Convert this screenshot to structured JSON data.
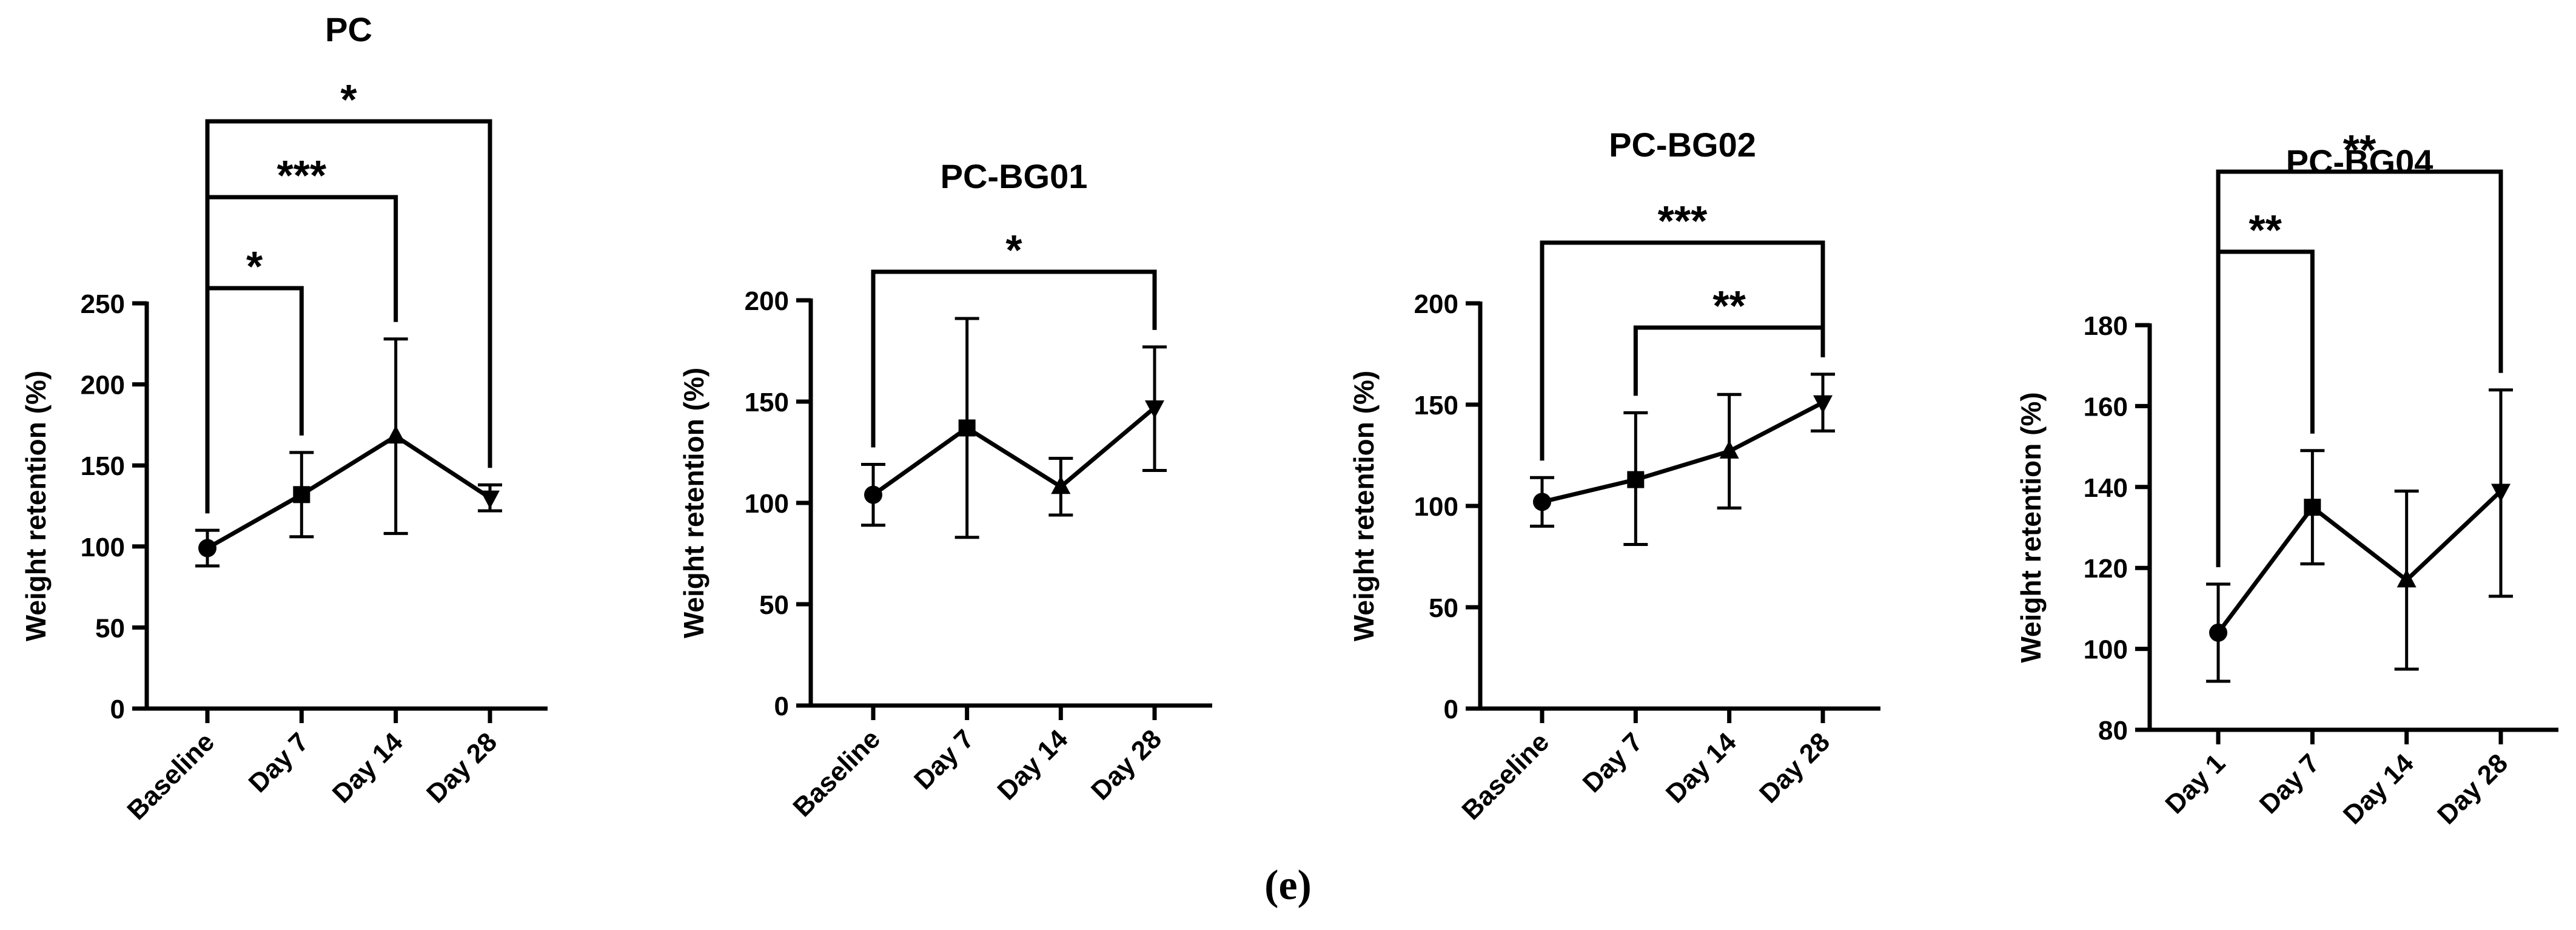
{
  "figure": {
    "caption": "(e)"
  },
  "chart_data": [
    {
      "type": "line",
      "title": "PC",
      "ylabel": "Weight retention (%)",
      "xlabel": "",
      "categories": [
        "Baseline",
        "Day 7",
        "Day 14",
        "Day 28"
      ],
      "markers": [
        "circle",
        "square",
        "triangle-up",
        "triangle-down"
      ],
      "values": [
        99,
        132,
        168,
        130
      ],
      "err_high": [
        110,
        158,
        228,
        138
      ],
      "err_low": [
        88,
        106,
        108,
        122
      ],
      "ylim": [
        0,
        250
      ],
      "yticks": [
        0,
        50,
        100,
        150,
        200,
        250
      ],
      "significance": [
        {
          "from": 0,
          "to": 1,
          "label": "*"
        },
        {
          "from": 0,
          "to": 2,
          "label": "***"
        },
        {
          "from": 0,
          "to": 3,
          "label": "*"
        }
      ]
    },
    {
      "type": "line",
      "title": "PC-BG01",
      "ylabel": "Weight retention (%)",
      "xlabel": "",
      "categories": [
        "Baseline",
        "Day 7",
        "Day 14",
        "Day 28"
      ],
      "markers": [
        "circle",
        "square",
        "triangle-up",
        "triangle-down"
      ],
      "values": [
        104,
        137,
        108,
        147
      ],
      "err_high": [
        119,
        191,
        122,
        177
      ],
      "err_low": [
        89,
        83,
        94,
        116
      ],
      "ylim": [
        0,
        200
      ],
      "yticks": [
        0,
        50,
        100,
        150,
        200
      ],
      "significance": [
        {
          "from": 0,
          "to": 3,
          "label": "*"
        }
      ]
    },
    {
      "type": "line",
      "title": "PC-BG02",
      "ylabel": "Weight retention (%)",
      "xlabel": "",
      "categories": [
        "Baseline",
        "Day 7",
        "Day 14",
        "Day 28"
      ],
      "markers": [
        "circle",
        "square",
        "triangle-up",
        "triangle-down"
      ],
      "values": [
        102,
        113,
        127,
        151
      ],
      "err_high": [
        114,
        146,
        155,
        165
      ],
      "err_low": [
        90,
        81,
        99,
        137
      ],
      "ylim": [
        0,
        200
      ],
      "yticks": [
        0,
        50,
        100,
        150,
        200
      ],
      "significance": [
        {
          "from": 1,
          "to": 3,
          "label": "**"
        },
        {
          "from": 0,
          "to": 3,
          "label": "***"
        }
      ]
    },
    {
      "type": "line",
      "title": "PC-BG04",
      "ylabel": "Weight retention (%)",
      "xlabel": "",
      "categories": [
        "Day 1",
        "Day 7",
        "Day 14",
        "Day 28"
      ],
      "markers": [
        "circle",
        "square",
        "triangle-up",
        "triangle-down"
      ],
      "values": [
        104,
        135,
        117,
        139
      ],
      "err_high": [
        116,
        149,
        139,
        164
      ],
      "err_low": [
        92,
        121,
        95,
        113
      ],
      "ylim": [
        80,
        180
      ],
      "yticks": [
        80,
        100,
        120,
        140,
        160,
        180
      ],
      "significance": [
        {
          "from": 0,
          "to": 1,
          "label": "**"
        },
        {
          "from": 0,
          "to": 3,
          "label": "**"
        }
      ]
    }
  ]
}
